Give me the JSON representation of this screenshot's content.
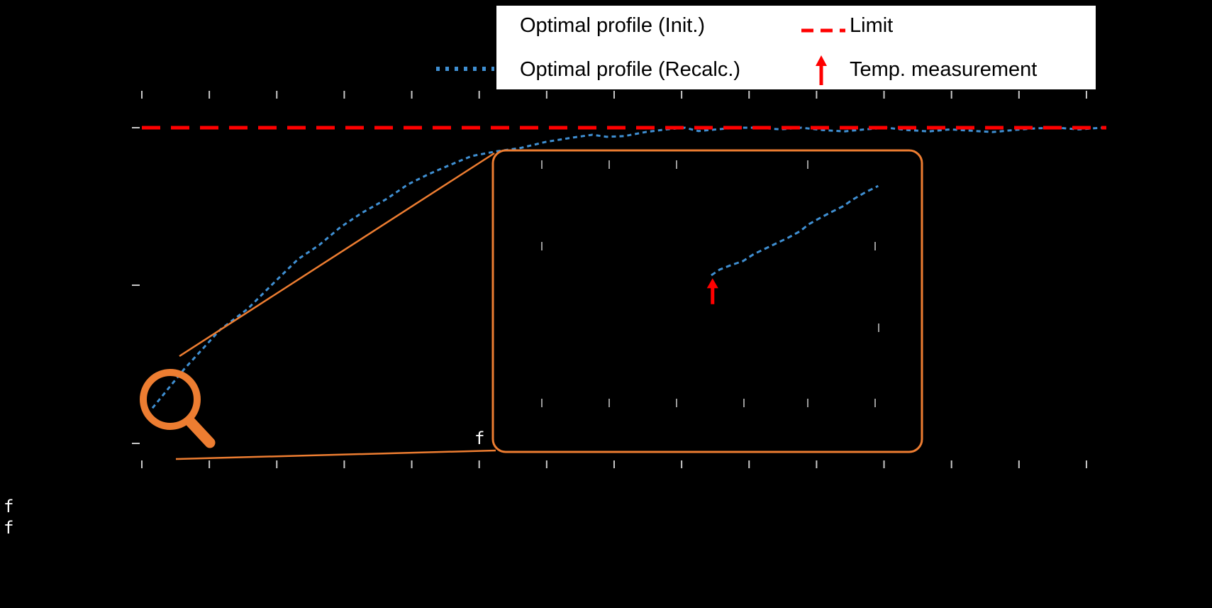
{
  "figure": {
    "background": "#000000",
    "colors": {
      "recalc_blue": "#3f8fd2",
      "limit_red": "#ff0000",
      "accent_orange": "#ED7D31",
      "tick_gray": "#c8c8c8",
      "inset_tick_gray": "#9a9a9a",
      "legend_bg": "#ffffff",
      "legend_text": "#000000"
    }
  },
  "legend": {
    "entries": [
      {
        "label": "Optimal profile (Init.)",
        "sample": "solid-line",
        "color": "#000000"
      },
      {
        "label": "Optimal profile (Recalc.)",
        "sample": "dotted-line",
        "color": "#3f8fd2"
      },
      {
        "label": "Limit",
        "sample": "dashed-line",
        "color": "#ff0000"
      },
      {
        "label": "Temp. measurement",
        "sample": "up-arrow",
        "color": "#ff0000"
      }
    ]
  },
  "stray_labels": {
    "inset_corner": "f",
    "bottom_line1": "f",
    "bottom_line2": "f"
  },
  "chart_data": {
    "type": "line",
    "title": "",
    "xlabel": "",
    "ylabel": "",
    "x_range": [
      0,
      100
    ],
    "y_range": [
      0,
      1.15
    ],
    "grid": false,
    "tick_labels_visible": false,
    "legend_position": "top-center",
    "series": [
      {
        "name": "Optimal profile (Init.)",
        "style": "solid",
        "color": "#000000",
        "x": [],
        "y": []
      },
      {
        "name": "Optimal profile (Recalc.)",
        "style": "dotted",
        "color": "#3f8fd2",
        "x": [
          1.1,
          4.4,
          8.1,
          11.0,
          13.2,
          16.2,
          18.4,
          20.6,
          22.8,
          25.4,
          27.6,
          29.8,
          32.0,
          34.2,
          36.8,
          39.3,
          41.9,
          44.5,
          46.7,
          48.2,
          50.0,
          52.2,
          54.4,
          56.3,
          57.7,
          59.6,
          61.8,
          64.0,
          66.2,
          68.4,
          70.6,
          72.8,
          75.0,
          77.2,
          79.4,
          81.6,
          83.8,
          86.0,
          88.2,
          90.4,
          92.6,
          94.9,
          97.1,
          99.6
        ],
        "y": [
          0.168,
          0.284,
          0.4,
          0.463,
          0.526,
          0.61,
          0.652,
          0.705,
          0.747,
          0.789,
          0.832,
          0.863,
          0.89,
          0.916,
          0.93,
          0.94,
          0.958,
          0.97,
          0.979,
          0.973,
          0.975,
          0.987,
          0.995,
          1.0,
          0.99,
          0.995,
          1.0,
          1.0,
          0.995,
          1.0,
          0.993,
          0.989,
          0.995,
          1.0,
          0.993,
          0.989,
          0.995,
          0.991,
          0.987,
          0.993,
          0.998,
          1.0,
          0.995,
          1.0
        ]
      },
      {
        "name": "Limit",
        "style": "dashed",
        "color": "#ff0000",
        "x": [
          0,
          100
        ],
        "y": [
          1.0,
          1.0
        ]
      }
    ],
    "inset": {
      "description": "zoom inset of recalculated profile with temperature measurement",
      "curve": {
        "name": "Optimal profile (Recalc.)",
        "color": "#3f8fd2",
        "x_frac": [
          0.509,
          0.529,
          0.554,
          0.583,
          0.608,
          0.636,
          0.661,
          0.689,
          0.716,
          0.736,
          0.76,
          0.788,
          0.815,
          0.84,
          0.868,
          0.898
        ],
        "y_frac": [
          0.586,
          0.605,
          0.619,
          0.633,
          0.656,
          0.675,
          0.692,
          0.711,
          0.732,
          0.755,
          0.774,
          0.795,
          0.814,
          0.838,
          0.861,
          0.882
        ]
      },
      "temp_measurement_arrow": {
        "x_frac": 0.512,
        "tip_y_frac": 0.576,
        "tail_y_frac": 0.49
      }
    }
  }
}
